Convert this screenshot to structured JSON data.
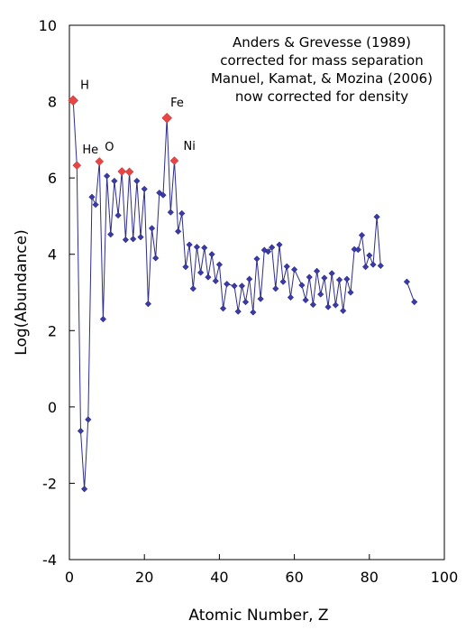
{
  "chart_data": {
    "type": "scatter",
    "title": "",
    "xlabel": "Atomic Number, Z",
    "ylabel": "Log(Abundance)",
    "xlim": [
      0,
      100
    ],
    "ylim": [
      -4,
      10
    ],
    "x_ticks": [
      0,
      20,
      40,
      60,
      80,
      100
    ],
    "y_ticks": [
      -4,
      -2,
      0,
      2,
      4,
      6,
      8,
      10
    ],
    "grid": false,
    "annotation_lines": [
      "Anders & Grevesse (1989)",
      "corrected for mass separation",
      "Manuel, Kamat, & Mozina (2006)",
      "now corrected for density"
    ],
    "colors": {
      "series": "#2d2d8c",
      "marker": "#3a3aa8",
      "highlight": "#e84545"
    },
    "series": [
      {
        "x": [
          1,
          2,
          3,
          4,
          5,
          6,
          7,
          8,
          9,
          10,
          11,
          12,
          13,
          14,
          15,
          16,
          17,
          18,
          19,
          20,
          21,
          22,
          23,
          24,
          25,
          26,
          27,
          28,
          29,
          30,
          31,
          32,
          33,
          34,
          35,
          36,
          37,
          38,
          39,
          40,
          41,
          42,
          44,
          45,
          46,
          47,
          48,
          49,
          50,
          51,
          52,
          53,
          54,
          55,
          56,
          57,
          58,
          59,
          60,
          62,
          63,
          64,
          65,
          66,
          67,
          68,
          69,
          70,
          71,
          72,
          73,
          74,
          75,
          76,
          77,
          78,
          79,
          80,
          81,
          82,
          83
        ],
        "y": [
          8.03,
          6.33,
          -0.63,
          -2.15,
          -0.33,
          5.5,
          5.3,
          6.43,
          2.3,
          6.05,
          4.52,
          5.92,
          5.02,
          6.17,
          4.38,
          6.16,
          4.4,
          5.92,
          4.45,
          5.71,
          2.7,
          4.68,
          3.9,
          5.61,
          5.55,
          7.57,
          5.1,
          6.45,
          4.6,
          5.07,
          3.67,
          4.25,
          3.1,
          4.19,
          3.52,
          4.17,
          3.4,
          4.0,
          3.3,
          3.73,
          2.58,
          3.22,
          3.17,
          2.5,
          3.17,
          2.75,
          3.35,
          2.48,
          3.88,
          2.83,
          4.11,
          4.07,
          4.18,
          3.1,
          4.25,
          3.28,
          3.68,
          2.87,
          3.6,
          3.19,
          2.8,
          3.4,
          2.68,
          3.56,
          2.95,
          3.38,
          2.62,
          3.5,
          2.67,
          3.33,
          2.52,
          3.35,
          3.0,
          4.13,
          4.12,
          4.5,
          3.67,
          3.97,
          3.73,
          4.98,
          3.7
        ]
      },
      {
        "x": [
          90,
          92
        ],
        "y": [
          3.28,
          2.75
        ]
      }
    ],
    "highlight_points": [
      {
        "label": "H",
        "x": 1,
        "y": 8.03
      },
      {
        "label": "He",
        "x": 2,
        "y": 6.33
      },
      {
        "label": "O",
        "x": 8,
        "y": 6.43
      },
      {
        "label": "",
        "x": 14,
        "y": 6.17
      },
      {
        "label": "",
        "x": 16,
        "y": 6.16
      },
      {
        "label": "Fe",
        "x": 26,
        "y": 7.57
      },
      {
        "label": "Ni",
        "x": 28,
        "y": 6.45
      }
    ]
  }
}
